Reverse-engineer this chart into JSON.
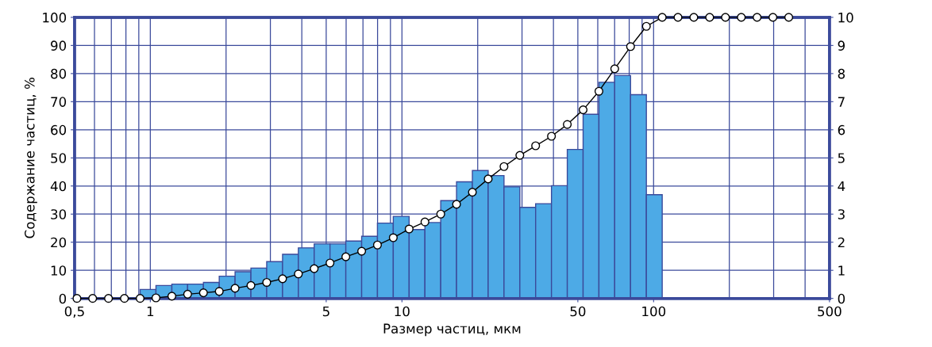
{
  "chart_data": {
    "type": "line",
    "xlabel": "Размер частиц, мкм",
    "ylabel": "Содержание частиц, %",
    "log": "x",
    "grid": true,
    "legend": false,
    "xlim": [
      0.5,
      500
    ],
    "xticks": [
      {
        "value": 0.5,
        "label": "0,5"
      },
      1,
      5,
      10,
      50,
      100,
      500
    ],
    "ylim": [
      0,
      100
    ],
    "yticks": [
      0,
      10,
      20,
      30,
      40,
      50,
      60,
      70,
      80,
      90,
      100
    ],
    "y2lim": [
      0,
      10
    ],
    "y2ticks": [
      0,
      1,
      2,
      3,
      4,
      5,
      6,
      7,
      8,
      9,
      10
    ],
    "series": [
      {
        "type": "histogram",
        "axis": "y2",
        "color": "#4daae6",
        "bins": [
          0.911,
          1.053,
          1.218,
          1.407,
          1.626,
          1.879,
          2.172,
          2.511,
          2.901,
          3.354,
          3.876,
          4.48,
          5.177,
          5.983,
          6.916,
          7.991,
          9.237,
          10.68,
          12.34,
          14.26,
          16.48,
          19.05,
          22.01,
          25.44,
          29.41,
          33.98,
          39.28,
          45.4,
          52.47,
          60.64,
          70.07,
          80.99,
          93.61,
          108.2
        ],
        "values": [
          0.32,
          0.46,
          0.51,
          0.51,
          0.57,
          0.79,
          0.95,
          1.08,
          1.31,
          1.57,
          1.8,
          1.94,
          1.94,
          2.04,
          2.21,
          2.68,
          2.92,
          2.45,
          2.7,
          3.48,
          4.15,
          4.55,
          4.37,
          3.97,
          3.24,
          3.37,
          4.01,
          5.3,
          6.55,
          7.69,
          7.93,
          7.25,
          3.69
        ]
      },
      {
        "color": "#000000",
        "marker": "circle",
        "x": [
          0.511,
          0.59,
          0.682,
          0.789,
          0.911,
          1.053,
          1.218,
          1.407,
          1.626,
          1.879,
          2.172,
          2.511,
          2.901,
          3.354,
          3.876,
          4.48,
          5.177,
          5.983,
          6.916,
          7.991,
          9.237,
          10.68,
          12.34,
          14.26,
          16.48,
          19.05,
          22.01,
          25.44,
          29.41,
          33.98,
          39.28,
          45.4,
          52.47,
          60.64,
          70.07,
          80.99,
          93.61,
          108.2,
          125,
          144.5,
          167,
          193,
          223.1,
          257.8,
          298,
          344.4
        ],
        "values": [
          0,
          0,
          0,
          0,
          0,
          0.2,
          0.8,
          1.5,
          2,
          2.5,
          3.6,
          4.6,
          5.7,
          7,
          8.7,
          10.6,
          12.6,
          14.8,
          16.8,
          19,
          21.6,
          24.7,
          27.2,
          30,
          33.5,
          37.8,
          42.5,
          46.9,
          50.9,
          54.3,
          57.7,
          61.9,
          67.1,
          73.7,
          81.7,
          89.6,
          96.8,
          100,
          100,
          100,
          100,
          100,
          100,
          100,
          100,
          100
        ]
      }
    ]
  }
}
